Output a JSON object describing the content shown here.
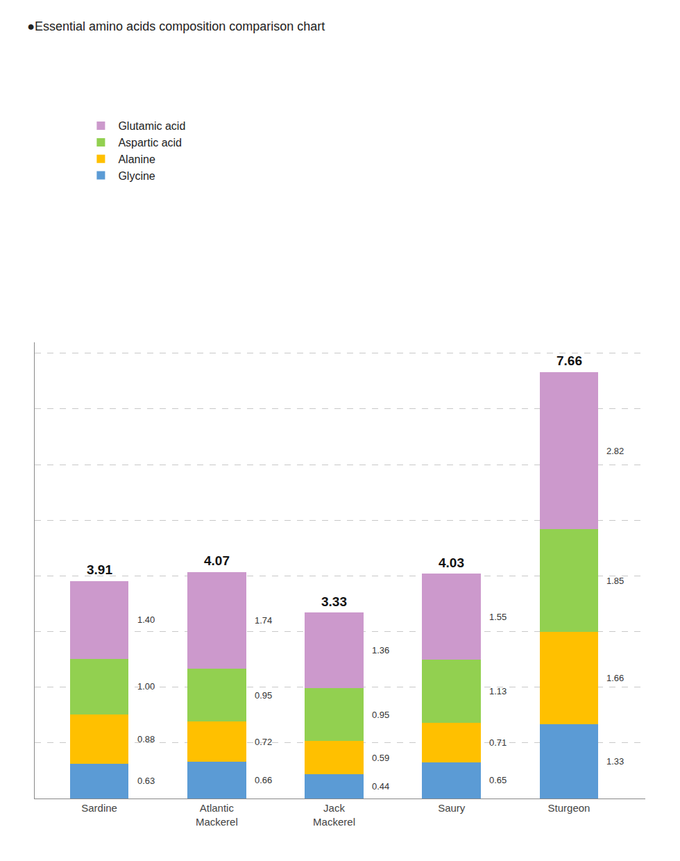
{
  "chart_data": {
    "type": "bar",
    "title": "●Essential amino acids composition comparison chart",
    "categories": [
      "Sardine",
      "Atlantic\nMackerel",
      "Jack\nMackerel",
      "Saury",
      "Sturgeon"
    ],
    "series": [
      {
        "name": "Glycine",
        "color": "#5B9BD5",
        "values": [
          0.63,
          0.66,
          0.44,
          0.65,
          1.33
        ],
        "value_labels": [
          "0.63",
          "0.66",
          "0.44",
          "0.65",
          "1.33"
        ]
      },
      {
        "name": "Alanine",
        "color": "#FFC000",
        "values": [
          0.88,
          0.72,
          0.59,
          0.71,
          1.66
        ],
        "value_labels": [
          "0.88",
          "0.72",
          "0.59",
          "0.71",
          "1.66"
        ]
      },
      {
        "name": "Aspartic acid",
        "color": "#92D050",
        "values": [
          1.0,
          0.95,
          0.95,
          1.13,
          1.85
        ],
        "value_labels": [
          "1.00",
          "0.95",
          "0.95",
          "1.13",
          "1.85"
        ]
      },
      {
        "name": "Glutamic acid",
        "color": "#CC99CC",
        "values": [
          1.4,
          1.74,
          1.36,
          1.55,
          2.82
        ],
        "value_labels": [
          "1.40",
          "1.74",
          "1.36",
          "1.55",
          "2.82"
        ]
      }
    ],
    "totals": [
      3.91,
      4.07,
      3.33,
      4.03,
      7.66
    ],
    "ylim": [
      0,
      8.2
    ],
    "yticks": [
      1,
      2,
      3,
      4,
      5,
      6,
      7,
      8
    ],
    "grid": true,
    "stacked": true,
    "data_labels": true,
    "tick_labels": "x",
    "legend": "upper left"
  }
}
